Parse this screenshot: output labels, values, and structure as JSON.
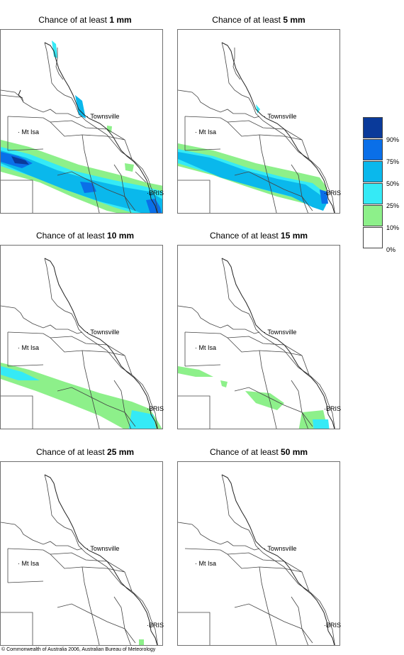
{
  "panels": [
    {
      "prefix": "Chance of at least",
      "amount": "1 mm"
    },
    {
      "prefix": "Chance of at least",
      "amount": "5 mm"
    },
    {
      "prefix": "Chance of at least",
      "amount": "10 mm"
    },
    {
      "prefix": "Chance of at least",
      "amount": "15 mm"
    },
    {
      "prefix": "Chance of at least",
      "amount": "25 mm"
    },
    {
      "prefix": "Chance of at least",
      "amount": "50 mm"
    }
  ],
  "places": {
    "townsville": "Townsville",
    "mt_isa": "Mt Isa",
    "brisbane": "BRIS"
  },
  "legend": {
    "labels": [
      "90%",
      "75%",
      "50%",
      "25%",
      "10%",
      "0%"
    ],
    "colors": [
      "#0a3a9a",
      "#0a6fe8",
      "#0ab8ec",
      "#35eaf6",
      "#8df08a",
      "#ffffff"
    ]
  },
  "footer": "© Commonwealth of Australia 2006, Australian Bureau of Meteorology"
}
